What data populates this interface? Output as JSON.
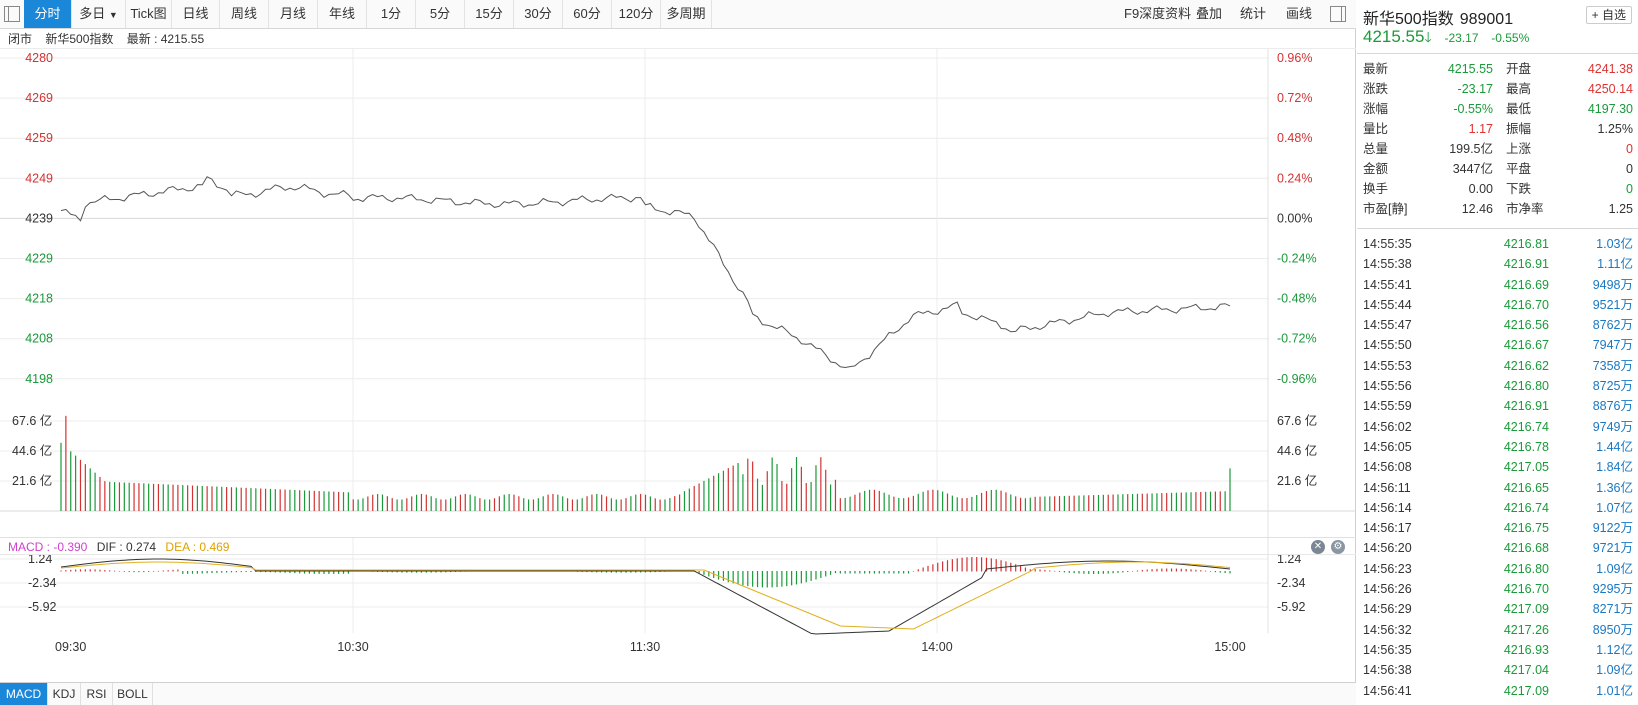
{
  "toolbar": {
    "tabs": [
      "分时",
      "多日",
      "Tick图",
      "日线",
      "周线",
      "月线",
      "年线",
      "1分",
      "5分",
      "15分",
      "30分",
      "60分",
      "120分",
      "多周期"
    ],
    "right_items": [
      "F9深度资料",
      "叠加",
      "统计",
      "画线"
    ]
  },
  "status": {
    "state": "闭市",
    "name": "新华500指数",
    "latest_label": "最新 : 4215.55"
  },
  "chart": {
    "price_ticks": [
      "4280",
      "4269",
      "4259",
      "4249",
      "4239",
      "4229",
      "4218",
      "4208",
      "4198"
    ],
    "pct_ticks": [
      "0.96%",
      "0.72%",
      "0.48%",
      "0.24%",
      "0.00%",
      "-0.24%",
      "-0.48%",
      "-0.72%",
      "-0.96%"
    ],
    "volume_ticks": [
      "67.6 亿",
      "44.6 亿",
      "21.6 亿"
    ],
    "macd_ticks": [
      "1.24",
      "-2.34",
      "-5.92"
    ],
    "time_ticks": [
      "09:30",
      "10:30",
      "11:30",
      "14:00",
      "15:00"
    ],
    "colors": {
      "up": "#d33333",
      "down": "#1a9a3a",
      "line": "#555555",
      "dea": "#e0b020",
      "flat": "#1a87d8"
    }
  },
  "macd_header": {
    "macd": "MACD : -0.390",
    "dif": "DIF : 0.274",
    "dea": "DEA : 0.469"
  },
  "bottom_tabs": [
    "MACD",
    "KDJ",
    "RSI",
    "BOLL"
  ],
  "panel": {
    "title": "新华500指数",
    "code": "989001",
    "add_watch": "+ 自选",
    "price": "4215.55",
    "change": "-23.17",
    "change_pct": "-0.55%",
    "quotes": [
      {
        "l1": "最新",
        "v1": "4215.55",
        "c1": "green",
        "l2": "开盘",
        "v2": "4241.38",
        "c2": "red"
      },
      {
        "l1": "涨跌",
        "v1": "-23.17",
        "c1": "green",
        "l2": "最高",
        "v2": "4250.14",
        "c2": "red"
      },
      {
        "l1": "涨幅",
        "v1": "-0.55%",
        "c1": "green",
        "l2": "最低",
        "v2": "4197.30",
        "c2": "green"
      },
      {
        "l1": "量比",
        "v1": "1.17",
        "c1": "red",
        "l2": "振幅",
        "v2": "1.25%",
        "c2": "dark"
      },
      {
        "l1": "总量",
        "v1": "199.5亿",
        "c1": "dark",
        "l2": "上涨",
        "v2": "0",
        "c2": "red"
      },
      {
        "l1": "金额",
        "v1": "3447亿",
        "c1": "dark",
        "l2": "平盘",
        "v2": "0",
        "c2": "dark"
      },
      {
        "l1": "换手",
        "v1": "0.00",
        "c1": "dark",
        "l2": "下跌",
        "v2": "0",
        "c2": "green"
      },
      {
        "l1": "市盈[静]",
        "v1": "12.46",
        "c1": "dark",
        "l2": "市净率",
        "v2": "1.25",
        "c2": "dark"
      }
    ],
    "ticks": [
      {
        "t": "14:55:35",
        "p": "4216.81",
        "v": "1.03亿"
      },
      {
        "t": "14:55:38",
        "p": "4216.91",
        "v": "1.11亿"
      },
      {
        "t": "14:55:41",
        "p": "4216.69",
        "v": "9498万"
      },
      {
        "t": "14:55:44",
        "p": "4216.70",
        "v": "9521万"
      },
      {
        "t": "14:55:47",
        "p": "4216.56",
        "v": "8762万"
      },
      {
        "t": "14:55:50",
        "p": "4216.67",
        "v": "7947万"
      },
      {
        "t": "14:55:53",
        "p": "4216.62",
        "v": "7358万"
      },
      {
        "t": "14:55:56",
        "p": "4216.80",
        "v": "8725万"
      },
      {
        "t": "14:55:59",
        "p": "4216.91",
        "v": "8876万"
      },
      {
        "t": "14:56:02",
        "p": "4216.74",
        "v": "9749万"
      },
      {
        "t": "14:56:05",
        "p": "4216.78",
        "v": "1.44亿"
      },
      {
        "t": "14:56:08",
        "p": "4217.05",
        "v": "1.84亿"
      },
      {
        "t": "14:56:11",
        "p": "4216.65",
        "v": "1.36亿"
      },
      {
        "t": "14:56:14",
        "p": "4216.74",
        "v": "1.07亿"
      },
      {
        "t": "14:56:17",
        "p": "4216.75",
        "v": "9122万"
      },
      {
        "t": "14:56:20",
        "p": "4216.68",
        "v": "9721万"
      },
      {
        "t": "14:56:23",
        "p": "4216.80",
        "v": "1.09亿"
      },
      {
        "t": "14:56:26",
        "p": "4216.70",
        "v": "9295万"
      },
      {
        "t": "14:56:29",
        "p": "4217.09",
        "v": "8271万"
      },
      {
        "t": "14:56:32",
        "p": "4217.26",
        "v": "8950万"
      },
      {
        "t": "14:56:35",
        "p": "4216.93",
        "v": "1.12亿"
      },
      {
        "t": "14:56:38",
        "p": "4217.04",
        "v": "1.09亿"
      },
      {
        "t": "14:56:41",
        "p": "4217.09",
        "v": "1.01亿"
      }
    ]
  }
}
